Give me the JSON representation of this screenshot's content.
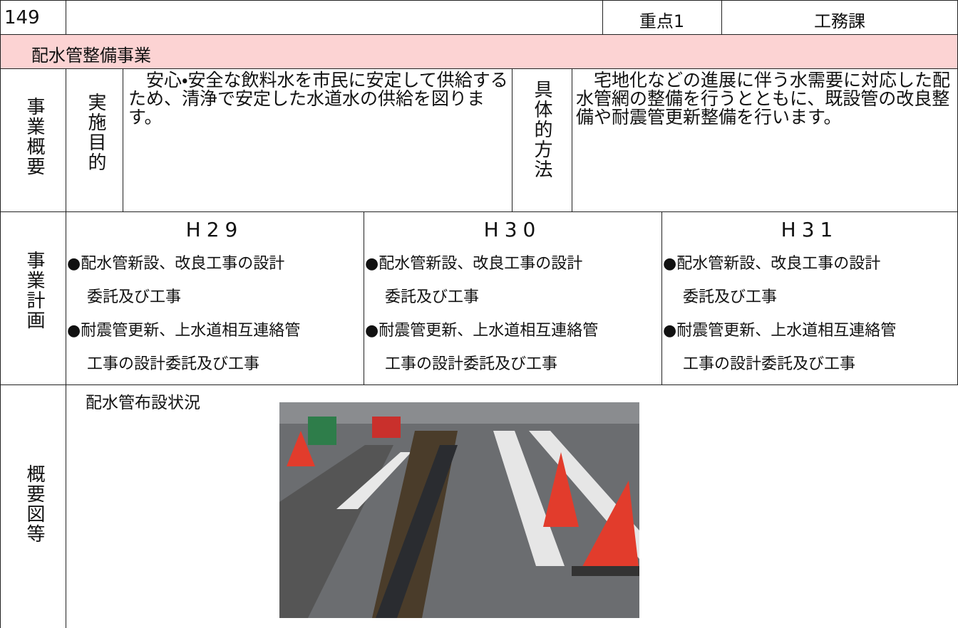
{
  "header": {
    "number": "149",
    "priority": "重点1",
    "department": "工務課"
  },
  "title": "配水管整備事業",
  "overview": {
    "label": "事業概要",
    "purpose_label": "実施目的",
    "purpose": "　安心・安全な飲料水を市民に安定して供給するため、清浄で安定した水道水の供給を図ります。",
    "method_label": "具体的方法",
    "method": "　宅地化などの進展に伴う水需要に対応した配水管網の整備を行うとともに、既設管の改良整備や耐震管更新整備を行います。"
  },
  "plan": {
    "label": "事業計画",
    "years": [
      {
        "year": "H29",
        "lines": [
          "●配水管新設、改良工事の設計",
          "委託及び工事",
          "●耐震管更新、上水道相互連絡管",
          "工事の設計委託及び工事"
        ]
      },
      {
        "year": "H30",
        "lines": [
          "●配水管新設、改良工事の設計",
          "委託及び工事",
          "●耐震管更新、上水道相互連絡管",
          "工事の設計委託及び工事"
        ]
      },
      {
        "year": "H31",
        "lines": [
          "●配水管新設、改良工事の設計",
          "委託及び工事",
          "●耐震管更新、上水道相互連絡管",
          "工事の設計委託及び工事"
        ]
      }
    ]
  },
  "figure": {
    "label": "概要図等",
    "caption": "配水管布設状況"
  }
}
